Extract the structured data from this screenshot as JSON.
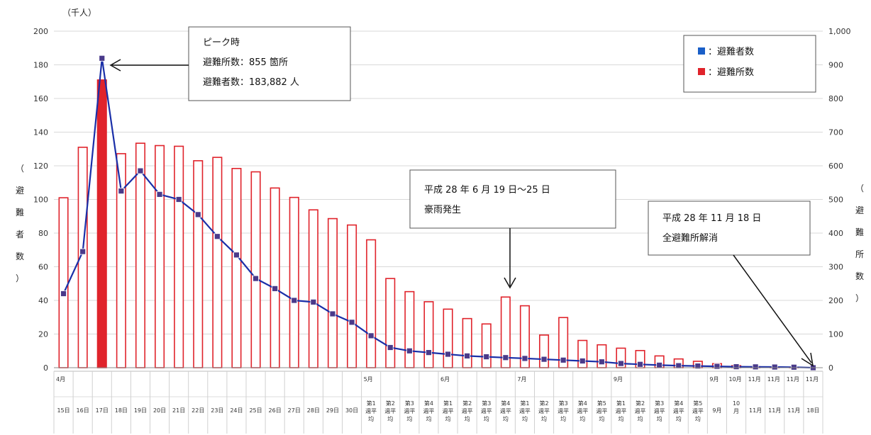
{
  "chart_data": {
    "type": "bar+line",
    "unit_label": "（千人）",
    "ylabel_left": [
      "（",
      "避",
      "難",
      "者",
      "数",
      "）"
    ],
    "ylabel_right": [
      "（",
      "避",
      "難",
      "所",
      "数",
      "）"
    ],
    "ylim_left": [
      0,
      200
    ],
    "ylim_right": [
      0,
      1000
    ],
    "yticks_left": [
      "0",
      "20",
      "40",
      "60",
      "80",
      "100",
      "120",
      "140",
      "160",
      "180",
      "200"
    ],
    "yticks_right": [
      "0",
      "100",
      "200",
      "300",
      "400",
      "500",
      "600",
      "700",
      "800",
      "900",
      "1,000"
    ],
    "categories": [
      [
        "15日"
      ],
      [
        "16日"
      ],
      [
        "17日"
      ],
      [
        "18日"
      ],
      [
        "19日"
      ],
      [
        "20日"
      ],
      [
        "21日"
      ],
      [
        "22日"
      ],
      [
        "23日"
      ],
      [
        "24日"
      ],
      [
        "25日"
      ],
      [
        "26日"
      ],
      [
        "27日"
      ],
      [
        "28日"
      ],
      [
        "29日"
      ],
      [
        "30日"
      ],
      [
        "第1",
        "週平",
        "均"
      ],
      [
        "第2",
        "週平",
        "均"
      ],
      [
        "第3",
        "週平",
        "均"
      ],
      [
        "第4",
        "週平",
        "均"
      ],
      [
        "第1",
        "週平",
        "均"
      ],
      [
        "第2",
        "週平",
        "均"
      ],
      [
        "第3",
        "週平",
        "均"
      ],
      [
        "第4",
        "週平",
        "均"
      ],
      [
        "第1",
        "週平",
        "均"
      ],
      [
        "第2",
        "週平",
        "均"
      ],
      [
        "第3",
        "週平",
        "均"
      ],
      [
        "第4",
        "週平",
        "均"
      ],
      [
        "第5",
        "週平",
        "均"
      ],
      [
        "第1",
        "週平",
        "均"
      ],
      [
        "第2",
        "週平",
        "均"
      ],
      [
        "第3",
        "週平",
        "均"
      ],
      [
        "第4",
        "週平",
        "均"
      ],
      [
        "第5",
        "週平",
        "均"
      ],
      [
        "9月"
      ],
      [
        "10",
        "月"
      ],
      [
        "11月"
      ],
      [
        "11月"
      ],
      [
        "11月"
      ],
      [
        "18日"
      ]
    ],
    "month_markers": [
      {
        "index": 0,
        "label": "4月"
      },
      {
        "index": 16,
        "label": "5月"
      },
      {
        "index": 20,
        "label": "6月"
      },
      {
        "index": 24,
        "label": "7月"
      },
      {
        "index": 29,
        "label": "9月"
      },
      {
        "index": 34,
        "label": "9月"
      },
      {
        "index": 35,
        "label": "10月"
      },
      {
        "index": 36,
        "label": "11月"
      },
      {
        "index": 37,
        "label": "11月"
      },
      {
        "index": 38,
        "label": "11月"
      },
      {
        "index": 39,
        "label": "11月"
      }
    ],
    "series": [
      {
        "name": "：避難所数",
        "type": "bar",
        "axis": "right",
        "color": "#e0232b",
        "highlight_index": 2,
        "values": [
          505,
          655,
          855,
          636,
          667,
          660,
          658,
          615,
          625,
          592,
          582,
          534,
          506,
          469,
          443,
          424,
          380,
          265,
          226,
          196,
          174,
          146,
          130,
          210,
          184,
          97,
          149,
          81,
          68,
          58,
          51,
          35,
          26,
          19,
          12,
          6,
          3,
          2,
          1,
          0
        ]
      },
      {
        "name": "：避難者数",
        "type": "line",
        "axis": "left",
        "color": "#1a2fa8",
        "marker_color": "#4a3a8a",
        "values": [
          44,
          69,
          183.882,
          105,
          117,
          103,
          100,
          91,
          78,
          67,
          53,
          47,
          40,
          39,
          32,
          27,
          19,
          12,
          10,
          9,
          8,
          7,
          6.5,
          6,
          5.5,
          5,
          4.5,
          4,
          3.5,
          2.5,
          2,
          1.5,
          1.2,
          1,
          0.8,
          0.6,
          0.5,
          0.4,
          0.3,
          0
        ]
      }
    ],
    "legend": {
      "placement": "top-right",
      "items": [
        {
          "label": "：避難者数",
          "color": "#1a5fc8"
        },
        {
          "label": "：避難所数",
          "color": "#e0232b"
        }
      ]
    },
    "annotations": {
      "peak": [
        "ピーク時",
        "避難所数：855 箇所",
        "避難者数：183,882 人"
      ],
      "rain": [
        "平成 28 年 6 月 19 日～25 日",
        "豪雨発生"
      ],
      "closed": [
        "平成 28 年 11 月 18 日",
        "全避難所解消"
      ]
    },
    "grid": true
  }
}
